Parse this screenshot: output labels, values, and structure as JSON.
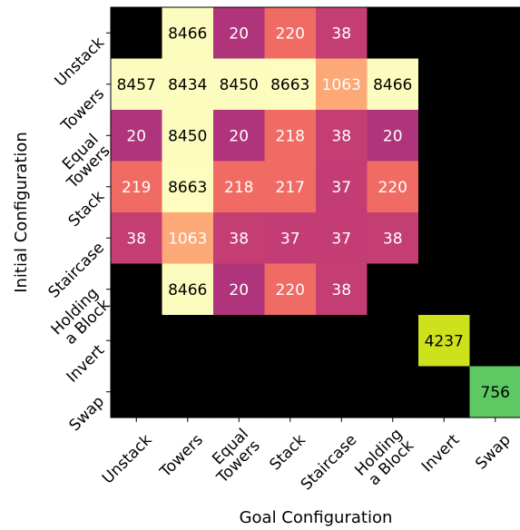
{
  "chart_data": {
    "type": "heatmap",
    "title": "",
    "xlabel": "Goal Configuration",
    "ylabel": "Initial Configuration",
    "x_categories": [
      "Unstack",
      "Towers",
      "Equal\nTowers",
      "Stack",
      "Staircase",
      "Holding\na Block",
      "Invert",
      "Swap"
    ],
    "y_categories": [
      "Unstack",
      "Towers",
      "Equal\nTowers",
      "Stack",
      "Staircase",
      "Holding\na Block",
      "Invert",
      "Swap"
    ],
    "values": [
      [
        null,
        8466,
        20,
        220,
        38,
        null,
        null,
        null
      ],
      [
        8457,
        8434,
        8450,
        8663,
        1063,
        8466,
        null,
        null
      ],
      [
        20,
        8450,
        20,
        218,
        38,
        20,
        null,
        null
      ],
      [
        219,
        8663,
        218,
        217,
        37,
        220,
        null,
        null
      ],
      [
        38,
        1063,
        38,
        37,
        37,
        38,
        null,
        null
      ],
      [
        null,
        8466,
        20,
        220,
        38,
        null,
        null,
        null
      ],
      [
        null,
        null,
        null,
        null,
        null,
        null,
        4237,
        null
      ],
      [
        null,
        null,
        null,
        null,
        null,
        null,
        null,
        756
      ]
    ],
    "colors": {
      "empty": "#000000",
      "axis": "#000000",
      "text_dark": "#000000",
      "text_light": "#ffffff",
      "invert_cell": "#cde11d",
      "swap_cell": "#5ec962"
    },
    "colormap": "magma"
  }
}
